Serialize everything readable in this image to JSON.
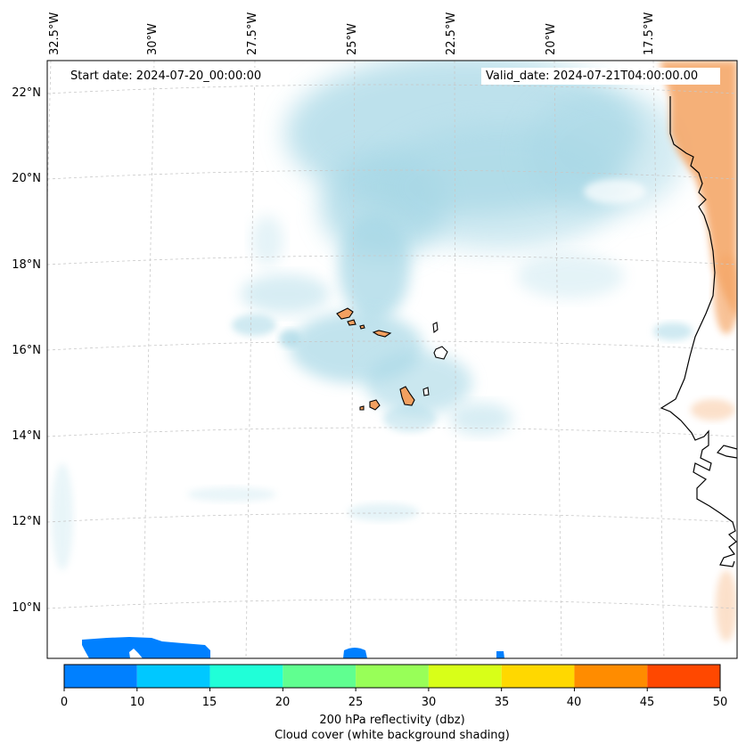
{
  "map": {
    "start_date": "Start date: 2024-07-20_00:00:00",
    "valid_date": "Valid_date: 2024-07-21T04:00:00.00",
    "lat_labels": [
      "22°N",
      "20°N",
      "18°N",
      "16°N",
      "14°N",
      "12°N",
      "10°N"
    ],
    "lon_labels": [
      "32.5°W",
      "30°W",
      "27.5°W",
      "25°W",
      "22.5°W",
      "20°W",
      "17.5°W"
    ],
    "features": [
      "coastline",
      "cape-verde-islands",
      "cloud-cover-shading",
      "reflectivity-contours"
    ]
  },
  "colorbar": {
    "ticks": [
      "0",
      "10",
      "15",
      "20",
      "25",
      "30",
      "35",
      "40",
      "45",
      "50"
    ],
    "colors": [
      "#0080ff",
      "#00c8ff",
      "#20ffd8",
      "#60ff90",
      "#98ff58",
      "#d8ff18",
      "#ffd800",
      "#ff8c00",
      "#ff4800"
    ],
    "label": "200 hPa reflectivity (dbz)",
    "sublabel": "Cloud cover (white background shading)"
  },
  "colors": {
    "cloud": "#a8d8e6",
    "land_warm": "#f5a86a",
    "island": "#f2a060",
    "grid": "#c8c8c8"
  }
}
